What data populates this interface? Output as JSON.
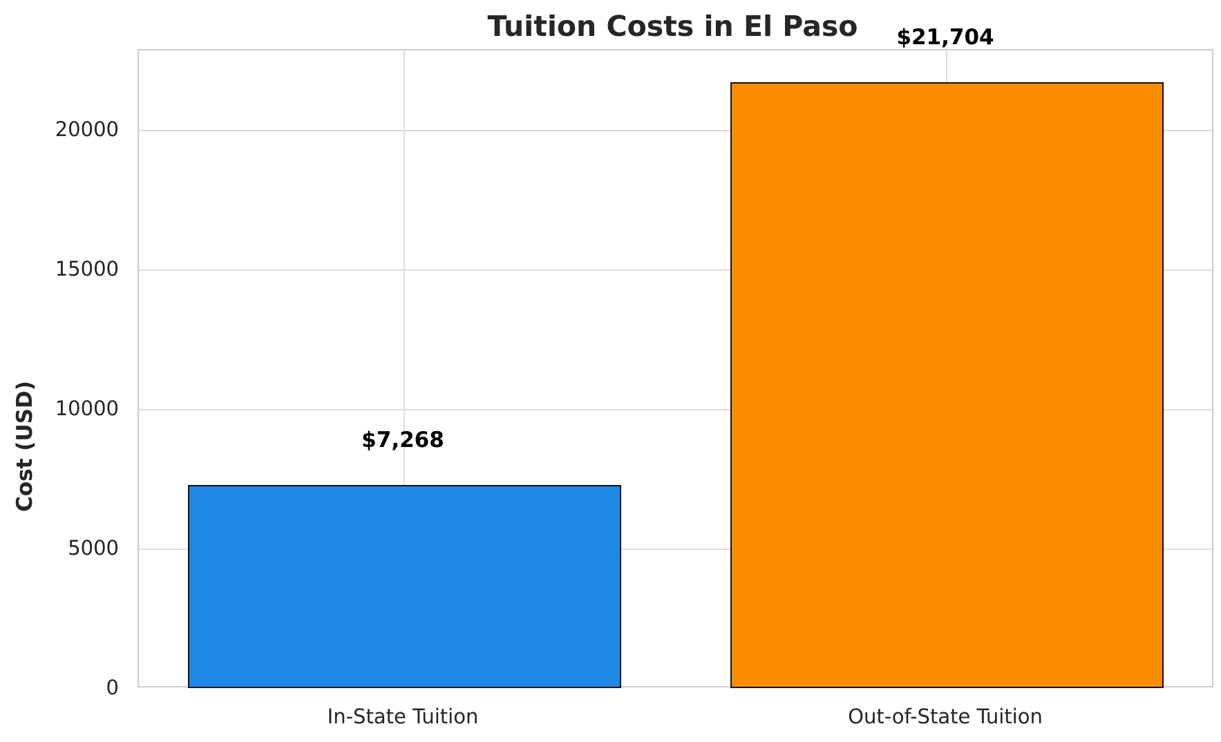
{
  "chart_data": {
    "type": "bar",
    "title": "Tuition Costs in El Paso",
    "xlabel": "",
    "ylabel": "Cost (USD)",
    "categories": [
      "In-State Tuition",
      "Out-of-State Tuition"
    ],
    "values": [
      7268,
      21704
    ],
    "value_labels": [
      "$7,268",
      "$21,704"
    ],
    "colors": [
      "#1E88E5",
      "#FB8C00"
    ],
    "ylim": [
      0,
      22800
    ],
    "yticks": [
      0,
      5000,
      10000,
      15000,
      20000
    ],
    "ytick_labels": [
      "0",
      "5000",
      "10000",
      "15000",
      "20000"
    ],
    "grid": true,
    "legend": null
  }
}
